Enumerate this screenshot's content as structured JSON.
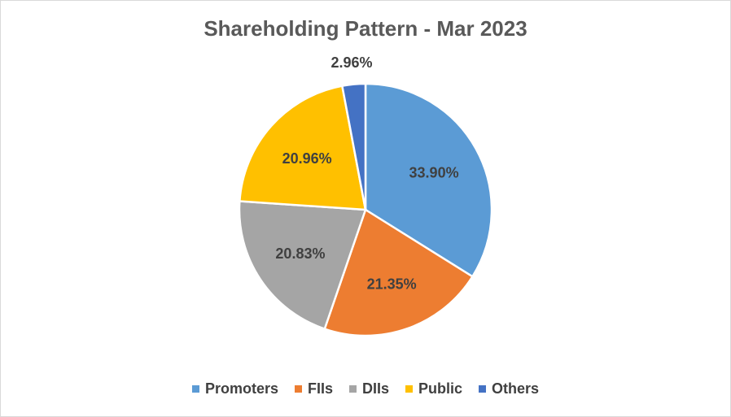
{
  "chart_data": {
    "type": "pie",
    "title": "Shareholding Pattern - Mar 2023",
    "categories": [
      "Promoters",
      "FIIs",
      "DIIs",
      "Public",
      "Others"
    ],
    "values": [
      33.9,
      21.35,
      20.83,
      20.96,
      2.96
    ],
    "data_labels": [
      "33.90%",
      "21.35%",
      "20.83%",
      "20.96%",
      "2.96%"
    ],
    "colors": [
      "#5b9bd5",
      "#ed7d31",
      "#a5a5a5",
      "#ffc000",
      "#4472c4"
    ],
    "legend_position": "bottom"
  }
}
